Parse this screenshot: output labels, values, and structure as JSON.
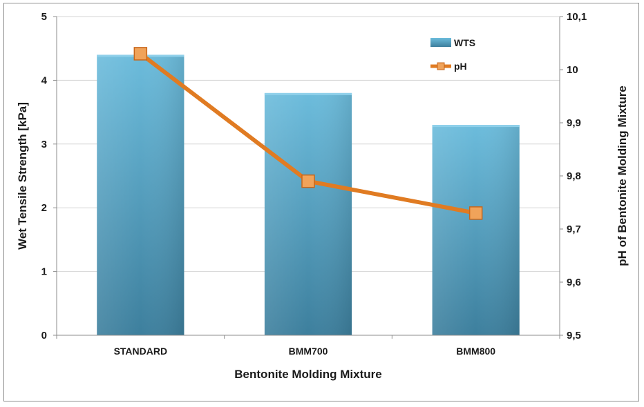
{
  "chart_data": {
    "type": "bar",
    "categories": [
      "STANDARD",
      "BMM700",
      "BMM800"
    ],
    "series": [
      {
        "name": "WTS",
        "type": "bar",
        "axis": "left",
        "values": [
          4.4,
          3.8,
          3.3
        ],
        "color": "#4fa3c6"
      },
      {
        "name": "pH",
        "type": "line",
        "axis": "right",
        "values": [
          10.03,
          9.79,
          9.73
        ],
        "color": "#e07b22",
        "marker_color": "#f0a35a"
      }
    ],
    "xlabel": "Bentonite Molding Mixture",
    "ylabel": "Wet Tensile Strength [kPa]",
    "ylabel_right": "pH of Bentonite Molding Mixture",
    "ylim": [
      0,
      5
    ],
    "ylim_right": [
      9.5,
      10.1
    ],
    "yticks": [
      "0",
      "1",
      "2",
      "3",
      "4",
      "5"
    ],
    "yticks_right": [
      "9,5",
      "9,6",
      "9,7",
      "9,8",
      "9,9",
      "10",
      "10,1"
    ],
    "grid": true,
    "legend_position": "top-right",
    "colors": {
      "grid": "#d4d4d4",
      "axis": "#8c8c8c"
    }
  }
}
